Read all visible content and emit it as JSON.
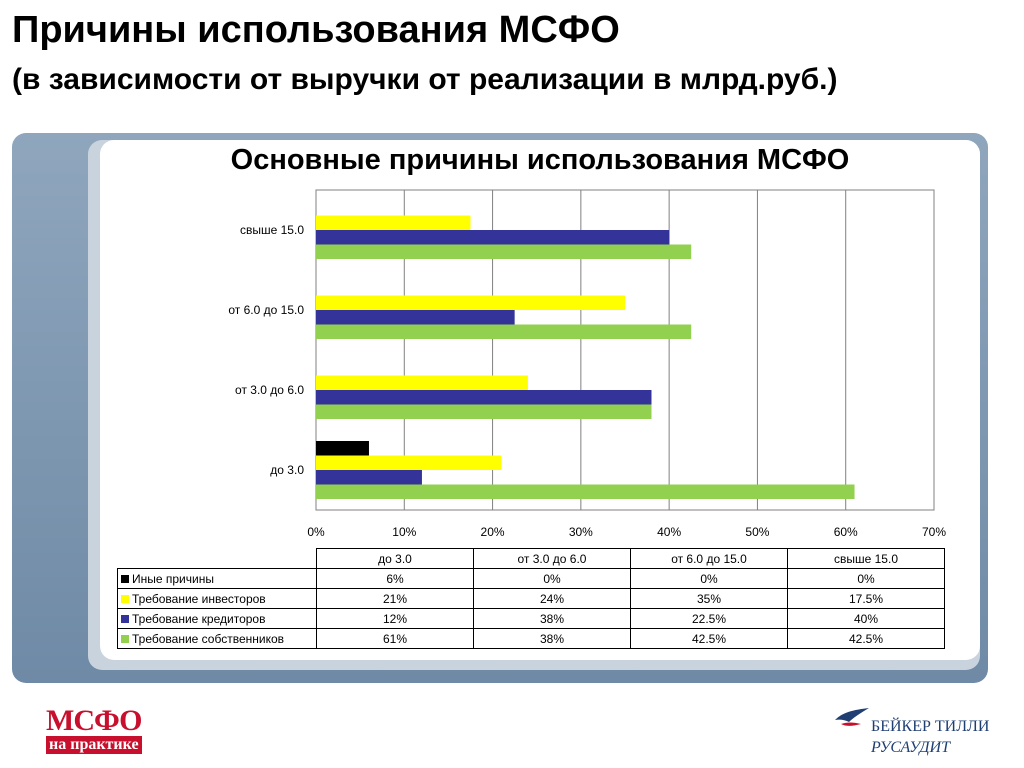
{
  "slide": {
    "title": "Причины использования МСФО",
    "subtitle": "(в зависимости от выручки от реализации в млрд.руб.)"
  },
  "logos": {
    "left_line1": "МСФО",
    "left_line2": "на практике",
    "right_line1": "БЕЙКЕР ТИЛЛИ",
    "right_line2": "РУСАУДИТ"
  },
  "chart_data": {
    "type": "bar",
    "orientation": "horizontal",
    "title": "Основные причины использования МСФО",
    "categories": [
      "до 3.0",
      "от 3.0 до 6.0",
      "от 6.0 до 15.0",
      "свыше 15.0"
    ],
    "category_order_display": "bottom-to-top",
    "series": [
      {
        "name": "Иные причины",
        "color": "#000000",
        "values": [
          6,
          0,
          0,
          0
        ],
        "labels": [
          "6%",
          "0%",
          "0%",
          "0%"
        ]
      },
      {
        "name": "Требование инвесторов",
        "color": "#ffff00",
        "values": [
          21,
          24,
          35,
          17.5
        ],
        "labels": [
          "21%",
          "24%",
          "35%",
          "17.5%"
        ]
      },
      {
        "name": "Требование кредиторов",
        "color": "#333399",
        "values": [
          12,
          38,
          22.5,
          40
        ],
        "labels": [
          "12%",
          "38%",
          "22.5%",
          "40%"
        ]
      },
      {
        "name": "Требование собственников",
        "color": "#92d050",
        "values": [
          61,
          38,
          42.5,
          42.5
        ],
        "labels": [
          "61%",
          "38%",
          "42.5%",
          "42.5%"
        ]
      }
    ],
    "xlim": [
      0,
      70
    ],
    "x_ticks": [
      "0%",
      "10%",
      "20%",
      "30%",
      "40%",
      "50%",
      "60%",
      "70%"
    ],
    "grid": true,
    "legend": "data table below chart"
  }
}
